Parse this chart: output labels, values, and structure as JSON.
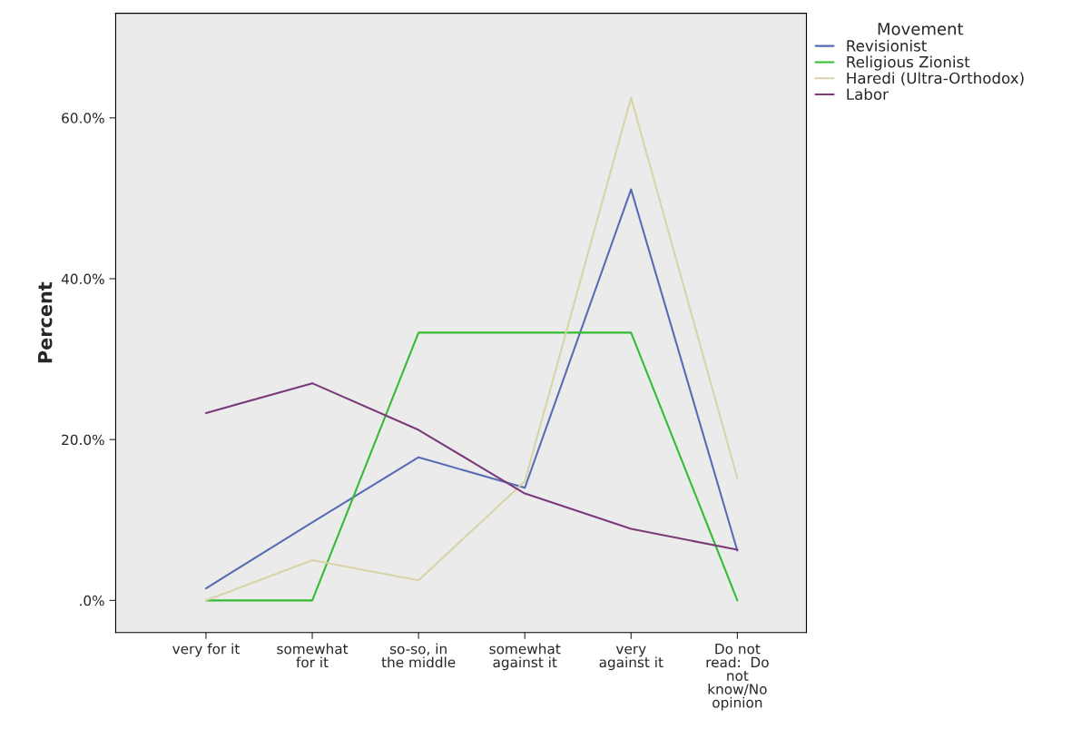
{
  "chart_data": {
    "type": "line",
    "ylabel": "Percent",
    "legend_title": "Movement",
    "legend": "top right",
    "grid": false,
    "marker": "none",
    "line_style": "solid",
    "categories": [
      "very for it",
      "somewhat\nfor it",
      "so-so, in\nthe middle",
      "somewhat\nagainst it",
      "very\nagainst it",
      "Do not\nread:  Do\nnot\nknow/No\nopinion"
    ],
    "ylim": [
      -4,
      73
    ],
    "yticks": [
      {
        "value": 0,
        "label": ".0%"
      },
      {
        "value": 20,
        "label": "20.0%"
      },
      {
        "value": 40,
        "label": "40.0%"
      },
      {
        "value": 60,
        "label": "60.0%"
      }
    ],
    "series": [
      {
        "name": "Revisionist",
        "color": "#5a6bb5",
        "values": [
          1.5,
          9.7,
          17.8,
          14.0,
          51.1,
          6.2
        ]
      },
      {
        "name": "Religious Zionist",
        "color": "#33bb33",
        "values": [
          0,
          0,
          33.3,
          33.3,
          33.3,
          0
        ]
      },
      {
        "name": "Haredi (Ultra-Orthodox)",
        "color": "#d9d3a8",
        "values": [
          0,
          5.0,
          2.5,
          14.8,
          62.5,
          15.2
        ]
      },
      {
        "name": "Labor",
        "color": "#7a3a7a",
        "values": [
          23.3,
          27.0,
          21.2,
          13.3,
          8.9,
          6.3
        ]
      }
    ]
  }
}
